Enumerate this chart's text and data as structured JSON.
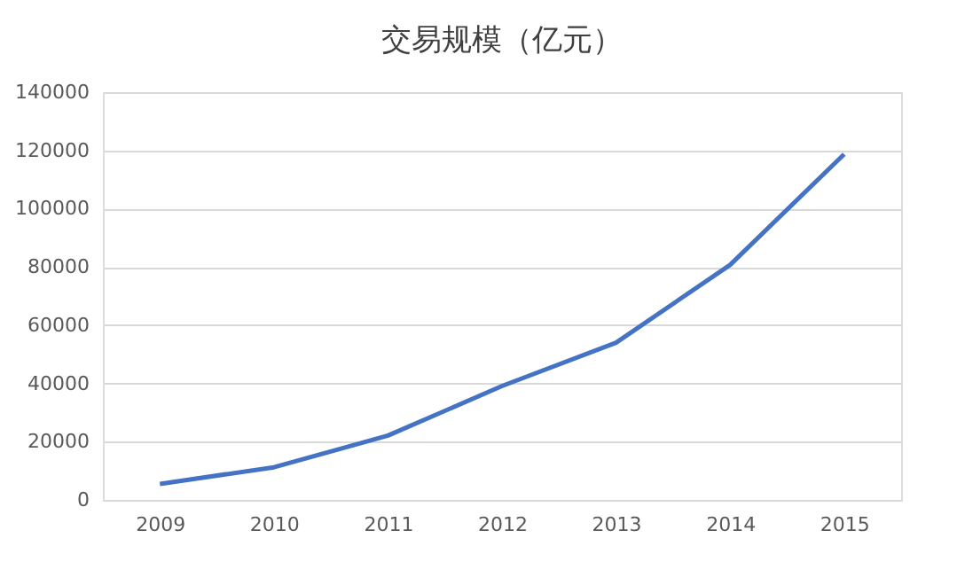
{
  "chart_data": {
    "type": "line",
    "title": "交易规模（亿元）",
    "categories": [
      "2009",
      "2010",
      "2011",
      "2012",
      "2013",
      "2014",
      "2015"
    ],
    "series": [
      {
        "color": "#4472c4",
        "values": [
          5500,
          11200,
          22100,
          39100,
          54000,
          80700,
          118700
        ]
      }
    ],
    "ylim": [
      0,
      140000
    ],
    "yticks": [
      0,
      20000,
      40000,
      60000,
      80000,
      100000,
      120000,
      140000
    ],
    "grid": "y",
    "marker": "none",
    "line_style": "solid"
  }
}
